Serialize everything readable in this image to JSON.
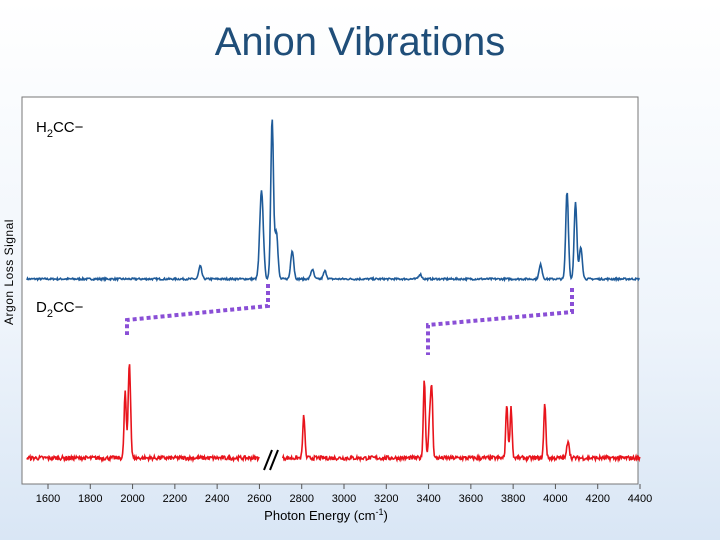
{
  "slide": {
    "title": "Anion Vibrations"
  },
  "chart_data": {
    "type": "line",
    "xlabel": "Photon Energy (cm",
    "xlabel_sup": "-1",
    "xlabel_close": ")",
    "ylabel": "Argon Loss Signal",
    "xlim": [
      1500,
      4400
    ],
    "x_ticks": [
      1600,
      1800,
      2000,
      2200,
      2400,
      2600,
      2800,
      3000,
      3200,
      3400,
      3600,
      3800,
      4000,
      4200,
      4400
    ],
    "y_ticks": [],
    "grid": false,
    "axis_break_at": 2650,
    "colors": {
      "h2cc": "#1f5b99",
      "d2cc": "#e8141c",
      "correlation": "#8a4fd6"
    },
    "series": [
      {
        "name": "H2CC−",
        "label_main": "H",
        "label_sub": "2",
        "label_rest": "CC−",
        "color": "#1f5b99",
        "baseline": 0,
        "peaks": [
          {
            "x": 2320,
            "height": 0.08,
            "width": 10
          },
          {
            "x": 2610,
            "height": 0.55,
            "width": 12
          },
          {
            "x": 2660,
            "height": 1.0,
            "width": 9
          },
          {
            "x": 2680,
            "height": 0.3,
            "width": 10
          },
          {
            "x": 2755,
            "height": 0.18,
            "width": 10
          },
          {
            "x": 2850,
            "height": 0.06,
            "width": 10
          },
          {
            "x": 2910,
            "height": 0.05,
            "width": 10
          },
          {
            "x": 3360,
            "height": 0.03,
            "width": 10
          },
          {
            "x": 3930,
            "height": 0.09,
            "width": 10
          },
          {
            "x": 4055,
            "height": 0.55,
            "width": 9
          },
          {
            "x": 4095,
            "height": 0.48,
            "width": 9
          },
          {
            "x": 4120,
            "height": 0.2,
            "width": 10
          }
        ]
      },
      {
        "name": "D2CC−",
        "label_main": "D",
        "label_sub": "2",
        "label_rest": "CC−",
        "color": "#e8141c",
        "baseline": 0,
        "segments": [
          [
            1500,
            2600
          ],
          [
            2710,
            4400
          ]
        ],
        "peaks": [
          {
            "x": 1965,
            "height": 0.55,
            "width": 7
          },
          {
            "x": 1985,
            "height": 0.8,
            "width": 8
          },
          {
            "x": 2810,
            "height": 0.35,
            "width": 7
          },
          {
            "x": 3380,
            "height": 0.65,
            "width": 7
          },
          {
            "x": 3415,
            "height": 0.55,
            "width": 7
          },
          {
            "x": 3405,
            "height": 0.3,
            "width": 8
          },
          {
            "x": 3770,
            "height": 0.45,
            "width": 7
          },
          {
            "x": 3790,
            "height": 0.42,
            "width": 7
          },
          {
            "x": 3950,
            "height": 0.45,
            "width": 7
          },
          {
            "x": 4060,
            "height": 0.15,
            "width": 8
          }
        ]
      }
    ]
  }
}
